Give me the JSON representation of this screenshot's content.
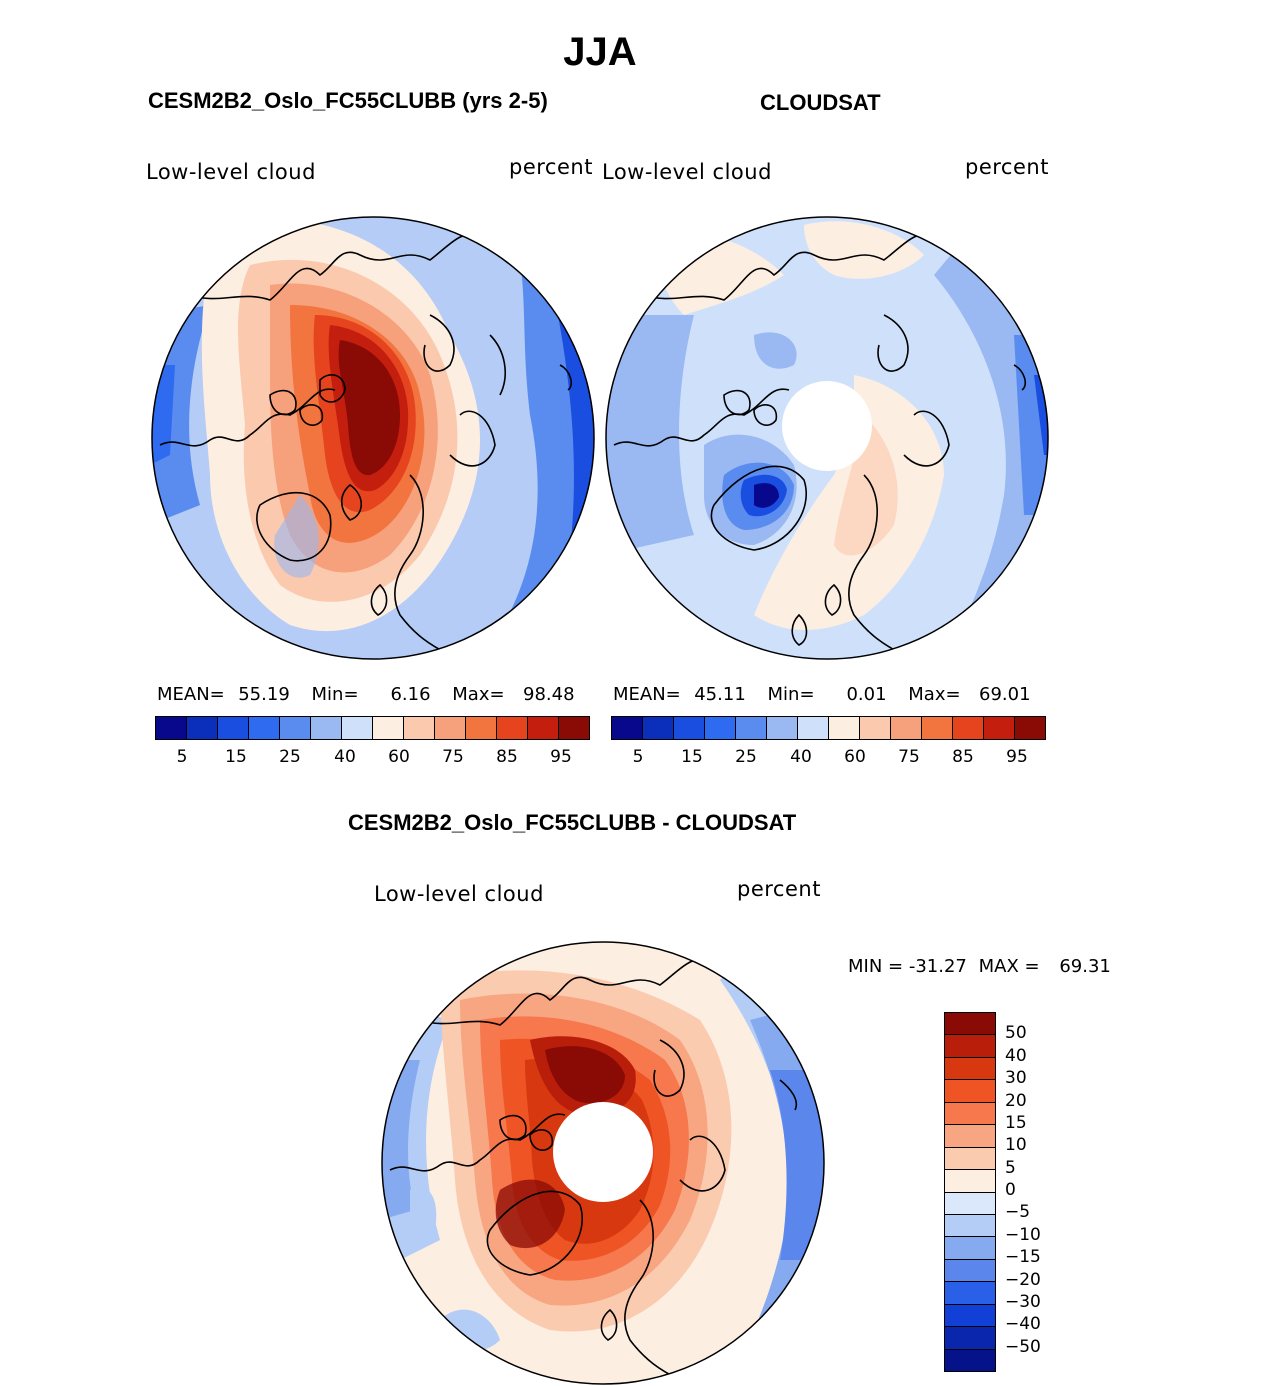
{
  "figure": {
    "title": "JJA",
    "top_left_title": "CESM2B2_Oslo_FC55CLUBB (yrs 2-5)",
    "top_right_title": "CLOUDSAT",
    "bottom_title": "CESM2B2_Oslo_FC55CLUBB - CLOUDSAT"
  },
  "colors": {
    "abs_scale": [
      "#08088c",
      "#0b2fba",
      "#1a4ee0",
      "#2f6bf0",
      "#5a8cf0",
      "#9ab8f2",
      "#cfe1fa",
      "#fdeee2",
      "#fbc9ad",
      "#f7a07c",
      "#f2743f",
      "#e6441e",
      "#c41e0f",
      "#8a0a06"
    ],
    "diff_scale": [
      "#8a0a06",
      "#b81e0a",
      "#d8380f",
      "#ee5424",
      "#f6784c",
      "#f8a682",
      "#fbcbb0",
      "#fdeee2",
      "#dbe8fb",
      "#b4cdf6",
      "#86aaf0",
      "#5b87ec",
      "#2a5fe8",
      "#123fd6",
      "#0a26ad",
      "#06128a"
    ]
  },
  "chart_data": [
    {
      "type": "heatmap",
      "title": "CESM2B2_Oslo_FC55CLUBB (yrs 2-5)",
      "variable": "Low-level cloud",
      "units": "percent",
      "stats": {
        "mean_label": "MEAN=",
        "mean": "55.19",
        "min_label": "Min=",
        "min": "6.16",
        "max_label": "Max=",
        "max": "98.48"
      },
      "colorbar_levels": [
        5,
        10,
        15,
        20,
        25,
        30,
        40,
        50,
        60,
        70,
        75,
        80,
        85,
        90,
        95
      ],
      "colorbar_tick_labels": [
        "5",
        "15",
        "25",
        "40",
        "60",
        "75",
        "85",
        "95"
      ],
      "field_description": "North polar stereographic; >90% over Arctic Ocean, 60-75% over land, 15-30% over North Pacific"
    },
    {
      "type": "heatmap",
      "title": "CLOUDSAT",
      "variable": "Low-level cloud",
      "units": "percent",
      "stats": {
        "mean_label": "MEAN=",
        "mean": "45.11",
        "min_label": "Min=",
        "min": "0.01",
        "max_label": "Max=",
        "max": "69.01"
      },
      "colorbar_levels": [
        5,
        10,
        15,
        20,
        25,
        30,
        40,
        50,
        60,
        70,
        75,
        80,
        85,
        90,
        95
      ],
      "colorbar_tick_labels": [
        "5",
        "15",
        "25",
        "40",
        "60",
        "75",
        "85",
        "95"
      ],
      "field_description": "North polar stereographic; missing data at pole, 40-60% over most regions, 10-20% over Greenland"
    },
    {
      "type": "heatmap",
      "title": "CESM2B2_Oslo_FC55CLUBB - CLOUDSAT",
      "variable": "Low-level cloud",
      "units": "percent",
      "stats": {
        "min_label": "MIN =",
        "min": "-31.27",
        "max_label": "MAX =",
        "max": "69.31"
      },
      "colorbar_levels": [
        50,
        40,
        30,
        20,
        15,
        10,
        5,
        0,
        -5,
        -10,
        -15,
        -20,
        -30,
        -40,
        -50
      ],
      "colorbar_tick_labels": [
        "50",
        "40",
        "30",
        "20",
        "15",
        "10",
        "5",
        "0",
        "−5",
        "−10",
        "−15",
        "−20",
        "−30",
        "−40",
        "−50"
      ],
      "field_description": "Difference: +30 to +50 over Arctic and Greenland, -10 to -20 over North Pacific"
    }
  ]
}
